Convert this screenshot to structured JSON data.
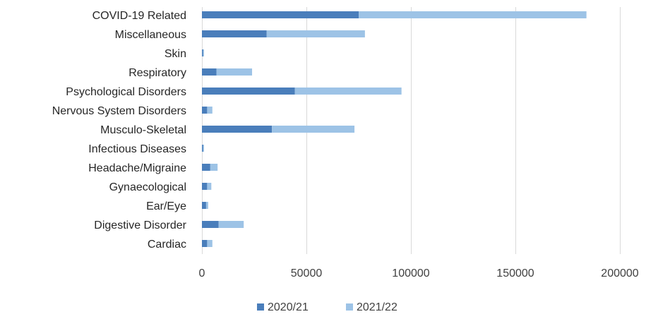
{
  "chart_data": {
    "type": "bar",
    "orientation": "horizontal",
    "stacked": true,
    "categories": [
      "COVID-19 Related",
      "Miscellaneous",
      "Skin",
      "Respiratory",
      "Psychological Disorders",
      "Nervous System Disorders",
      "Musculo-Skeletal",
      "Infectious Diseases",
      "Headache/Migraine",
      "Gynaecological",
      "Ear/Eye",
      "Digestive Disorder",
      "Cardiac"
    ],
    "series": [
      {
        "name": "2020/21",
        "color": "#4a7ebb",
        "values": [
          75000,
          31000,
          500,
          7000,
          44500,
          2500,
          33500,
          500,
          4000,
          2500,
          2000,
          8000,
          2500
        ]
      },
      {
        "name": "2021/22",
        "color": "#9dc3e6",
        "values": [
          109000,
          47000,
          500,
          17000,
          51000,
          2500,
          39500,
          500,
          3500,
          2000,
          1000,
          12000,
          2500
        ]
      }
    ],
    "xlim": [
      0,
      200000
    ],
    "xticks": [
      "0",
      "50000",
      "100000",
      "150000",
      "200000"
    ],
    "xtick_values": [
      0,
      50000,
      100000,
      150000,
      200000
    ],
    "grid": true,
    "legend_position": "bottom"
  }
}
